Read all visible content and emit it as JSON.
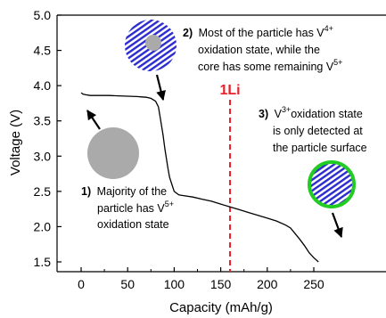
{
  "chart_data": {
    "type": "line",
    "xlabel": "Capacity (mAh/g)",
    "ylabel": "Voltage (V)",
    "xlim": [
      -15,
      275
    ],
    "ylim": [
      1.4,
      5.0
    ],
    "x_ticks": [
      0,
      50,
      100,
      150,
      200,
      250
    ],
    "y_ticks": [
      1.5,
      2.0,
      2.5,
      3.0,
      3.5,
      4.0,
      4.5,
      5.0
    ],
    "grid": false,
    "series": [
      {
        "color": "#000000",
        "x": [
          0,
          2,
          5,
          10,
          20,
          30,
          40,
          50,
          60,
          65,
          70,
          75,
          80,
          83,
          85,
          88,
          90,
          93,
          95,
          98,
          100,
          105,
          110,
          120,
          130,
          140,
          150,
          160,
          170,
          180,
          190,
          200,
          210,
          220,
          225,
          230,
          235,
          240,
          245,
          250,
          255
        ],
        "y": [
          3.9,
          3.88,
          3.87,
          3.86,
          3.86,
          3.86,
          3.855,
          3.85,
          3.845,
          3.84,
          3.835,
          3.82,
          3.78,
          3.7,
          3.55,
          3.3,
          3.1,
          2.85,
          2.7,
          2.58,
          2.5,
          2.45,
          2.44,
          2.42,
          2.39,
          2.36,
          2.32,
          2.28,
          2.24,
          2.2,
          2.16,
          2.12,
          2.08,
          2.02,
          1.98,
          1.9,
          1.82,
          1.73,
          1.63,
          1.56,
          1.5
        ]
      }
    ],
    "vline": {
      "x": 160,
      "label": "1Li",
      "color": "#e8202a",
      "style": "dashed"
    },
    "annotations": [
      {
        "num": "1)",
        "text": "Majority of the",
        "text2": "particle has V",
        "sup2": "5+",
        "text3": "oxidation state"
      },
      {
        "num": "2)",
        "text": "Most of the particle has V",
        "sup": "4+",
        "text2": "oxidation state, while the",
        "text3": "core has some remaining V",
        "sup3": "5+"
      },
      {
        "num": "3)",
        "text": "V",
        "sup": "3+",
        "text_after": "oxidation state",
        "text2": "is only detected at",
        "text3": "the particle surface"
      }
    ],
    "colors": {
      "stripe_blue": "#2b2bd0",
      "core_gray": "#aaaaaa",
      "ring_green": "#22cc22"
    }
  }
}
